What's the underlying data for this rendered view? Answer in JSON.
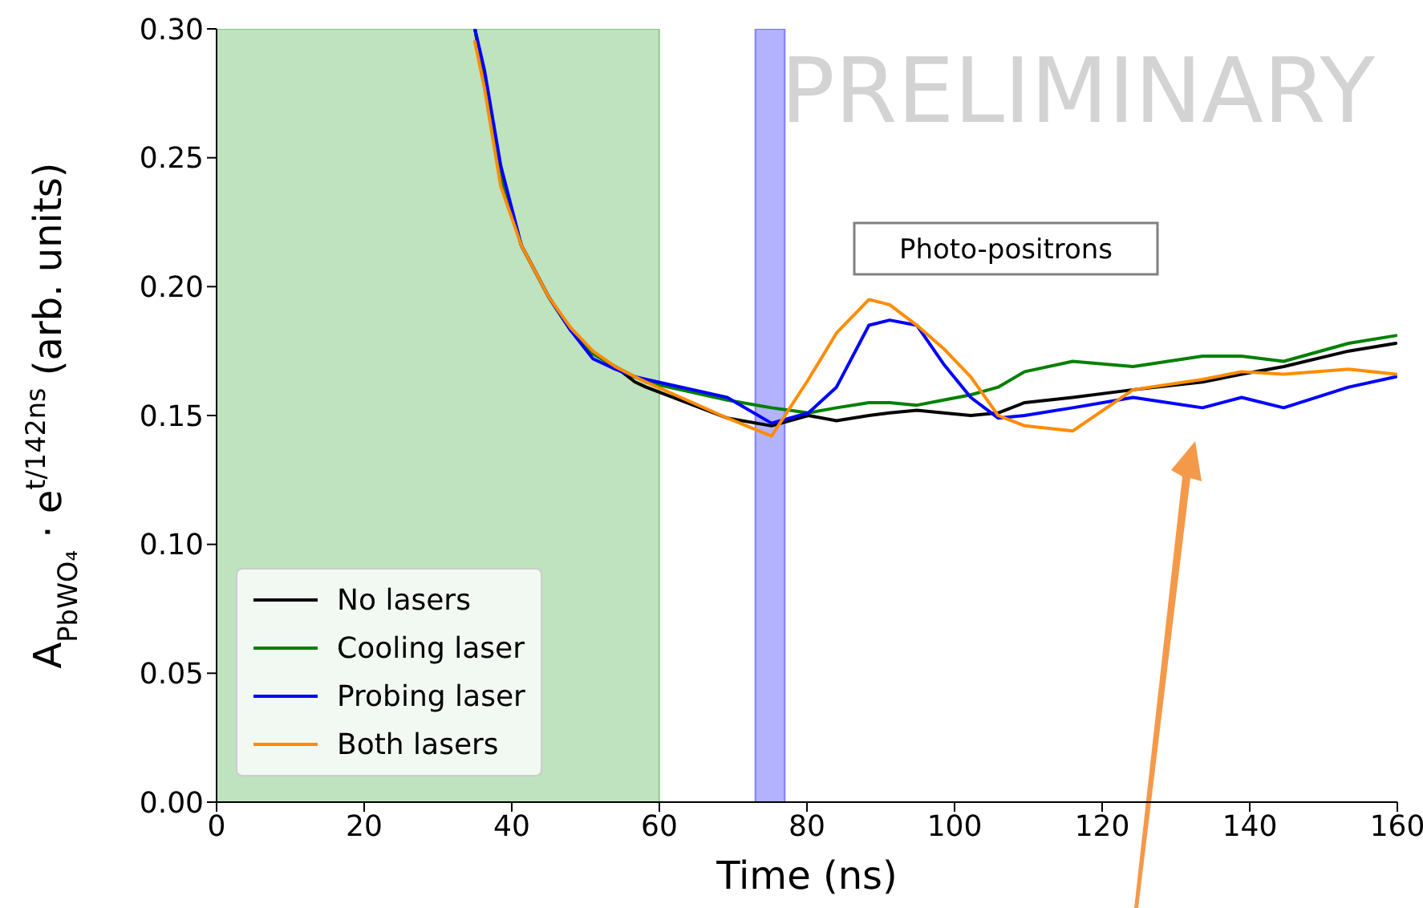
{
  "chart_data": {
    "type": "line",
    "xlabel": "Time (ns)",
    "ylabel": "A$_{PbWO₄}$ · e$^{t/142ns}$ (arb. units)",
    "x": [
      35,
      36.3,
      38.5,
      41.3,
      45,
      48,
      51,
      54,
      56.7,
      58.2,
      69.2,
      75.2,
      80.2,
      84,
      88.4,
      91.2,
      94.9,
      98.5,
      102.2,
      105.9,
      109.5,
      116,
      124.2,
      133.6,
      138.9,
      144.6,
      153.4,
      159.8
    ],
    "series": [
      {
        "name": "No lasers",
        "color": "#000000",
        "values": [
          0.3,
          0.28,
          0.242,
          0.216,
          0.196,
          0.183,
          0.174,
          0.169,
          0.163,
          0.161,
          0.149,
          0.146,
          0.15,
          0.148,
          0.15,
          0.151,
          0.152,
          0.151,
          0.15,
          0.151,
          0.155,
          0.157,
          0.16,
          0.163,
          0.166,
          0.169,
          0.175,
          0.178
        ]
      },
      {
        "name": "Cooling laser",
        "color": "#008000",
        "values": [
          0.3,
          0.28,
          0.242,
          0.216,
          0.196,
          0.183,
          0.174,
          0.169,
          0.165,
          0.163,
          0.156,
          0.153,
          0.151,
          0.153,
          0.155,
          0.155,
          0.154,
          0.156,
          0.158,
          0.161,
          0.167,
          0.171,
          0.169,
          0.173,
          0.173,
          0.171,
          0.178,
          0.181
        ]
      },
      {
        "name": "Probing laser",
        "color": "#0000ff",
        "values": [
          0.3,
          0.284,
          0.247,
          0.216,
          0.196,
          0.183,
          0.172,
          0.168,
          0.165,
          0.164,
          0.157,
          0.147,
          0.151,
          0.161,
          0.185,
          0.187,
          0.185,
          0.17,
          0.157,
          0.149,
          0.15,
          0.153,
          0.157,
          0.153,
          0.157,
          0.153,
          0.161,
          0.165
        ]
      },
      {
        "name": "Both lasers",
        "color": "#ff8c00",
        "values": [
          0.295,
          0.277,
          0.239,
          0.216,
          0.196,
          0.184,
          0.175,
          0.169,
          0.165,
          0.163,
          0.149,
          0.142,
          0.164,
          0.182,
          0.195,
          0.193,
          0.185,
          0.176,
          0.165,
          0.15,
          0.146,
          0.144,
          0.16,
          0.164,
          0.167,
          0.166,
          0.168,
          0.166
        ]
      }
    ],
    "xlim": [
      0,
      160
    ],
    "xticks": [
      0,
      20,
      40,
      60,
      80,
      100,
      120,
      140,
      160
    ],
    "ylim": [
      0,
      0.3
    ],
    "yticks": [
      {
        "value": 0,
        "label": "0.00"
      },
      {
        "value": 0.05,
        "label": "0.05"
      },
      {
        "value": 0.1,
        "label": "0.10"
      },
      {
        "value": 0.15,
        "label": "0.15"
      },
      {
        "value": 0.2,
        "label": "0.20"
      },
      {
        "value": 0.25,
        "label": "0.25"
      },
      {
        "value": 0.3,
        "label": "0.30"
      }
    ],
    "bands": [
      {
        "axis": "x",
        "from": 0,
        "to": 60,
        "color": "#2ca02c"
      },
      {
        "axis": "x",
        "from": 73,
        "to": 77,
        "color": "#0000ff"
      }
    ],
    "annotations": [
      "PRELIMINARY",
      "Photo-positrons"
    ],
    "legend": "bottom left",
    "grid": false,
    "marker": "none",
    "line_style": "solid"
  }
}
